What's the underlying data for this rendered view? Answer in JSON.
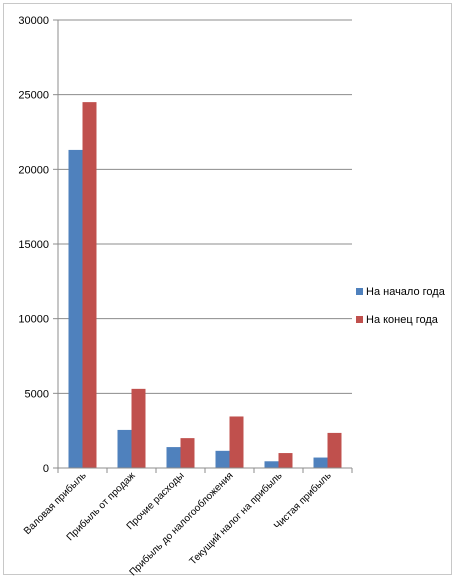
{
  "chart_data": {
    "type": "bar",
    "title": "",
    "xlabel": "",
    "ylabel": "",
    "ylim": [
      0,
      30000
    ],
    "yticks": [
      0,
      5000,
      10000,
      15000,
      20000,
      25000,
      30000
    ],
    "grid": true,
    "legend_position": "right",
    "categories": [
      "Валовая прибыль",
      "Прибыль от продаж",
      "Прочие расходы",
      "Прибыль до налогообложения",
      "Текущий налог на прибыль",
      "Чистая прибыль"
    ],
    "series": [
      {
        "name": "На начало года",
        "color": "#4f81bd",
        "values": [
          21300,
          2550,
          1400,
          1150,
          450,
          700
        ]
      },
      {
        "name": "На конец года",
        "color": "#c0504d",
        "values": [
          24500,
          5300,
          2000,
          3450,
          1000,
          2350
        ]
      }
    ]
  }
}
